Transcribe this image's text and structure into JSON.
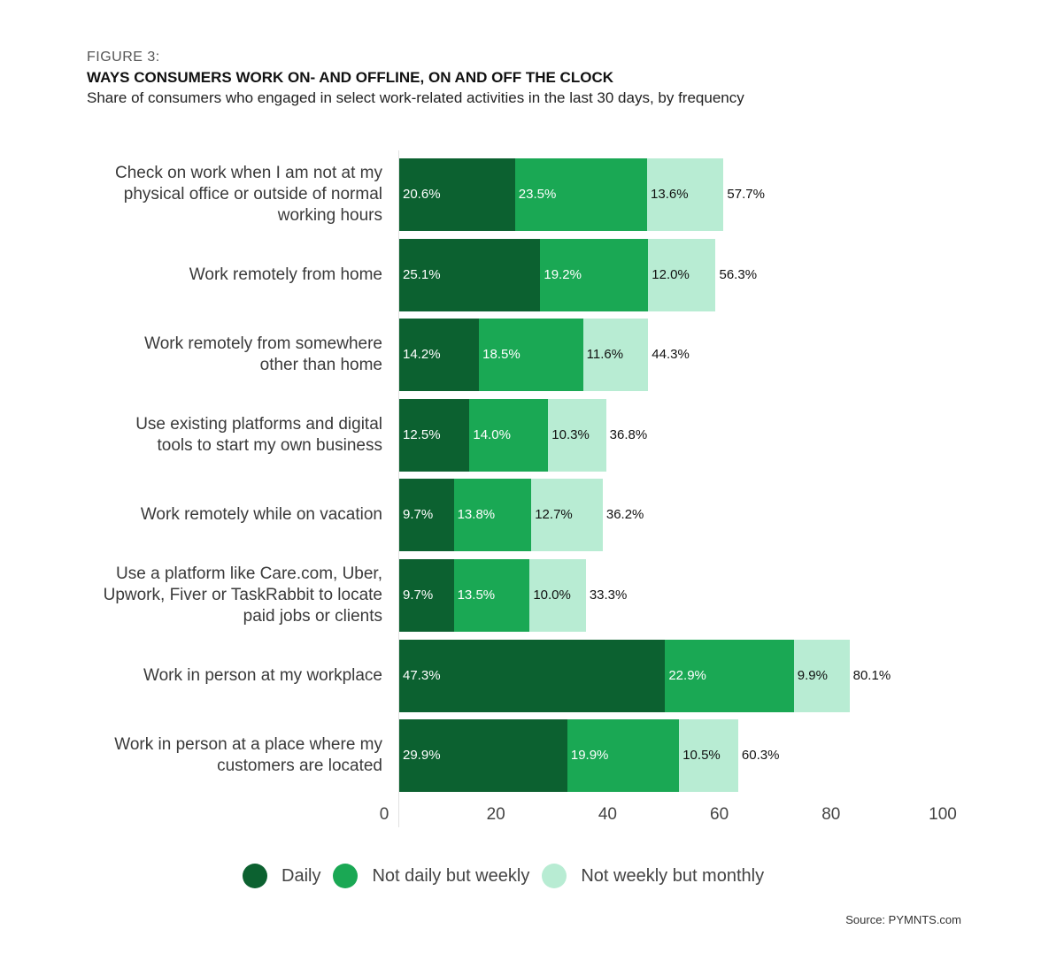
{
  "figure_label": "FIGURE 3:",
  "chart_data": {
    "type": "bar",
    "orientation": "horizontal",
    "stacked": true,
    "title": "WAYS CONSUMERS WORK ON- AND OFFLINE, ON AND OFF THE CLOCK",
    "subtitle": "Share of consumers who engaged in select work-related activities in the last 30 days, by frequency",
    "xlabel": "",
    "ylabel": "",
    "xlim": [
      0,
      100
    ],
    "x_ticks": [
      "0",
      "20",
      "40",
      "60",
      "80",
      "100"
    ],
    "grid": false,
    "legend_position": "bottom-center",
    "categories": [
      "Check on work when I am not at my physical office or outside of normal working hours",
      "Work remotely from home",
      "Work remotely from somewhere other than home",
      "Use existing platforms and digital tools to start my own business",
      "Work remotely while on vacation",
      "Use a platform like Care.com, Uber, Upwork, Fiver or TaskRabbit to locate paid jobs or clients",
      "Work in person at my workplace",
      "Work in person at a place where my customers are located"
    ],
    "category_lines": [
      [
        "Check on work when I am not at my",
        "physical office or outside of normal",
        "working hours"
      ],
      [
        "Work remotely from home"
      ],
      [
        "Work remotely from somewhere",
        "other than home"
      ],
      [
        "Use existing platforms and digital",
        "tools to start my own business"
      ],
      [
        "Work remotely while on vacation"
      ],
      [
        "Use a platform like Care.com, Uber,",
        "Upwork, Fiver or TaskRabbit to locate",
        "paid jobs or clients"
      ],
      [
        "Work in person at my workplace"
      ],
      [
        "Work in person at a place where my",
        "customers are located"
      ]
    ],
    "series": [
      {
        "name": "Daily",
        "color": "#0c6130",
        "label_color": "#ffffff",
        "values": [
          20.6,
          25.1,
          14.2,
          12.5,
          9.7,
          9.7,
          47.3,
          29.9
        ],
        "labels": [
          "20.6%",
          "25.1%",
          "14.2%",
          "12.5%",
          "9.7%",
          "9.7%",
          "47.3%",
          "29.9%"
        ]
      },
      {
        "name": "Not daily but weekly",
        "color": "#1aa854",
        "label_color": "#ffffff",
        "values": [
          23.5,
          19.2,
          18.5,
          14.0,
          13.8,
          13.5,
          22.9,
          19.9
        ],
        "labels": [
          "23.5%",
          "19.2%",
          "18.5%",
          "14.0%",
          "13.8%",
          "13.5%",
          "22.9%",
          "19.9%"
        ]
      },
      {
        "name": "Not weekly but monthly",
        "color": "#b8ecd3",
        "label_color": "#111111",
        "values": [
          13.6,
          12.0,
          11.6,
          10.3,
          12.7,
          10.0,
          9.9,
          10.5
        ],
        "labels": [
          "13.6%",
          "12.0%",
          "11.6%",
          "10.3%",
          "12.7%",
          "10.0%",
          "9.9%",
          "10.5%"
        ]
      }
    ],
    "totals": [
      57.7,
      56.3,
      44.3,
      36.8,
      36.2,
      33.3,
      80.1,
      60.3
    ],
    "total_labels": [
      "57.7%",
      "56.3%",
      "44.3%",
      "36.8%",
      "36.2%",
      "33.3%",
      "80.1%",
      "60.3%"
    ]
  },
  "source": "Source: PYMNTS.com"
}
